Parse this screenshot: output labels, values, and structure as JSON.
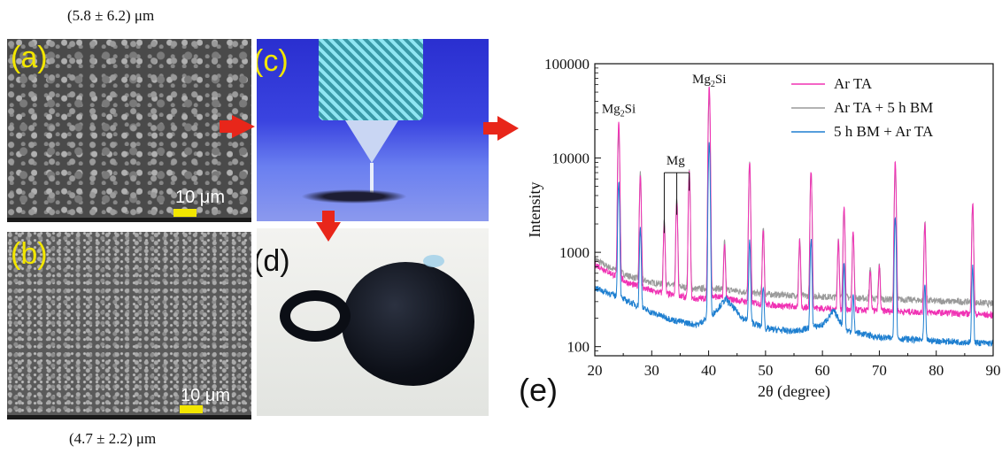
{
  "captions": {
    "top": "(5.8 ± 6.2) μm",
    "bottom": "(4.7 ± 2.2) μm"
  },
  "panels": {
    "a": {
      "label": "(a)",
      "scale": "10 μm"
    },
    "b": {
      "label": "(b)",
      "scale": "10 μm"
    },
    "c": {
      "label": "(c)"
    },
    "d": {
      "label": "(d)"
    },
    "e": {
      "label": "(e)"
    }
  },
  "colors": {
    "panel_label": "#f2e600",
    "scalebar": "#f2e600",
    "arrow": "#e8261a",
    "ar_ta": "#f032b4",
    "ar_ta_bm": "#9a9a9a",
    "bm_ar_ta": "#1e7fd0"
  },
  "chart_data": {
    "type": "line",
    "title": "",
    "xlabel": "2θ (degree)",
    "ylabel": "Intensity",
    "xlim": [
      20,
      90
    ],
    "ylim": [
      80,
      100000
    ],
    "yscale": "log",
    "xticks": [
      20,
      30,
      40,
      50,
      60,
      70,
      80,
      90
    ],
    "yticks": [
      {
        "value": 100,
        "label": "100"
      },
      {
        "value": 1000,
        "label": "1000"
      },
      {
        "value": 10000,
        "label": "10000"
      },
      {
        "value": 100000,
        "label": "100000"
      }
    ],
    "legend_position": "top-right",
    "annotations": [
      {
        "text": "Mg",
        "sub": "2",
        "tail": "Si",
        "x": 24.2,
        "y": 30000
      },
      {
        "text": "Mg",
        "sub": "2",
        "tail": "Si",
        "x": 40.1,
        "y": 62000
      },
      {
        "text": "Mg",
        "sub": "",
        "tail": "",
        "x": 34.2,
        "y": 8500
      }
    ],
    "mg_marker_peaks": [
      32.2,
      34.4,
      36.6
    ],
    "series": [
      {
        "name": "Ar TA",
        "color": "#f032b4",
        "baseline": [
          [
            20,
            750
          ],
          [
            22,
            640
          ],
          [
            26,
            470
          ],
          [
            30,
            390
          ],
          [
            34,
            350
          ],
          [
            38,
            320
          ],
          [
            41,
            340
          ],
          [
            45,
            310
          ],
          [
            50,
            280
          ],
          [
            55,
            265
          ],
          [
            60,
            255
          ],
          [
            65,
            245
          ],
          [
            70,
            240
          ],
          [
            75,
            235
          ],
          [
            80,
            230
          ],
          [
            85,
            225
          ],
          [
            90,
            215
          ]
        ],
        "peaks": [
          [
            24.2,
            25000
          ],
          [
            28.0,
            6500
          ],
          [
            32.2,
            2000
          ],
          [
            34.4,
            3500
          ],
          [
            36.6,
            7000
          ],
          [
            40.1,
            58000
          ],
          [
            42.8,
            1200
          ],
          [
            47.2,
            9000
          ],
          [
            49.6,
            1800
          ],
          [
            56.0,
            1300
          ],
          [
            58.0,
            7200
          ],
          [
            62.8,
            1300
          ],
          [
            63.8,
            3000
          ],
          [
            65.4,
            1600
          ],
          [
            68.4,
            650
          ],
          [
            70.0,
            700
          ],
          [
            72.8,
            9000
          ],
          [
            78.0,
            2000
          ],
          [
            86.4,
            3300
          ]
        ]
      },
      {
        "name": "Ar TA + 5 h BM",
        "color": "#9a9a9a",
        "baseline": [
          [
            20,
            850
          ],
          [
            22,
            720
          ],
          [
            26,
            560
          ],
          [
            30,
            480
          ],
          [
            34,
            440
          ],
          [
            38,
            410
          ],
          [
            41,
            420
          ],
          [
            45,
            390
          ],
          [
            50,
            360
          ],
          [
            55,
            350
          ],
          [
            60,
            340
          ],
          [
            65,
            330
          ],
          [
            70,
            320
          ],
          [
            75,
            315
          ],
          [
            80,
            305
          ],
          [
            85,
            300
          ],
          [
            90,
            285
          ]
        ],
        "peaks": [
          [
            24.2,
            20000
          ],
          [
            28.0,
            7000
          ],
          [
            32.2,
            2200
          ],
          [
            34.4,
            3800
          ],
          [
            36.6,
            7300
          ],
          [
            40.1,
            45000
          ],
          [
            42.8,
            1300
          ],
          [
            47.2,
            8500
          ],
          [
            49.6,
            1900
          ],
          [
            56.0,
            1400
          ],
          [
            58.0,
            7000
          ],
          [
            62.8,
            1400
          ],
          [
            63.8,
            3100
          ],
          [
            65.4,
            1700
          ],
          [
            68.4,
            700
          ],
          [
            70.0,
            750
          ],
          [
            72.8,
            8000
          ],
          [
            78.0,
            2100
          ],
          [
            86.4,
            3100
          ]
        ]
      },
      {
        "name": "5 h BM + Ar TA",
        "color": "#1e7fd0",
        "baseline": [
          [
            20,
            420
          ],
          [
            22,
            380
          ],
          [
            26,
            300
          ],
          [
            30,
            230
          ],
          [
            34,
            190
          ],
          [
            38,
            170
          ],
          [
            41,
            230
          ],
          [
            43,
            320
          ],
          [
            46,
            200
          ],
          [
            50,
            155
          ],
          [
            55,
            145
          ],
          [
            60,
            170
          ],
          [
            62,
            240
          ],
          [
            64,
            150
          ],
          [
            70,
            125
          ],
          [
            75,
            120
          ],
          [
            80,
            115
          ],
          [
            85,
            112
          ],
          [
            90,
            108
          ]
        ],
        "peaks": [
          [
            24.2,
            5800
          ],
          [
            28.0,
            1800
          ],
          [
            40.1,
            14500
          ],
          [
            47.2,
            1300
          ],
          [
            49.6,
            450
          ],
          [
            58.0,
            1400
          ],
          [
            63.8,
            750
          ],
          [
            65.4,
            350
          ],
          [
            72.8,
            2500
          ],
          [
            78.0,
            430
          ],
          [
            86.4,
            700
          ]
        ]
      }
    ]
  }
}
